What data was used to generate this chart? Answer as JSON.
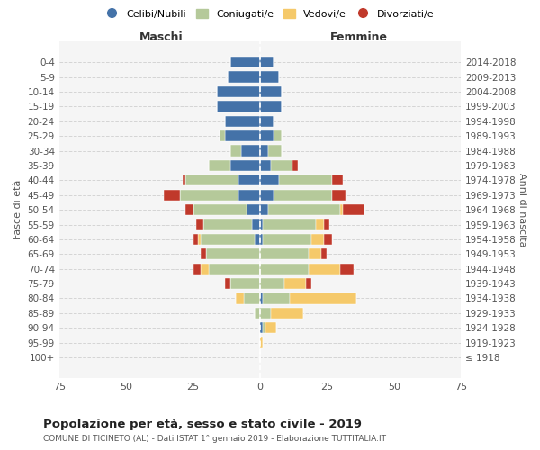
{
  "age_groups": [
    "100+",
    "95-99",
    "90-94",
    "85-89",
    "80-84",
    "75-79",
    "70-74",
    "65-69",
    "60-64",
    "55-59",
    "50-54",
    "45-49",
    "40-44",
    "35-39",
    "30-34",
    "25-29",
    "20-24",
    "15-19",
    "10-14",
    "5-9",
    "0-4"
  ],
  "birth_years": [
    "≤ 1918",
    "1919-1923",
    "1924-1928",
    "1929-1933",
    "1934-1938",
    "1939-1943",
    "1944-1948",
    "1949-1953",
    "1954-1958",
    "1959-1963",
    "1964-1968",
    "1969-1973",
    "1974-1978",
    "1979-1983",
    "1984-1988",
    "1989-1993",
    "1994-1998",
    "1999-2003",
    "2004-2008",
    "2009-2013",
    "2014-2018"
  ],
  "colors": {
    "single": "#4472a8",
    "married": "#b5c99a",
    "widowed": "#f5c96a",
    "divorced": "#c0392b"
  },
  "male": {
    "single": [
      0,
      0,
      0,
      0,
      0,
      0,
      0,
      0,
      2,
      3,
      5,
      8,
      8,
      11,
      7,
      13,
      13,
      16,
      16,
      12,
      11
    ],
    "married": [
      0,
      0,
      0,
      2,
      6,
      11,
      19,
      20,
      20,
      18,
      20,
      22,
      20,
      8,
      4,
      2,
      0,
      0,
      0,
      0,
      0
    ],
    "widowed": [
      0,
      0,
      0,
      0,
      3,
      0,
      3,
      0,
      1,
      0,
      0,
      0,
      0,
      0,
      0,
      0,
      0,
      0,
      0,
      0,
      0
    ],
    "divorced": [
      0,
      0,
      0,
      0,
      0,
      2,
      3,
      2,
      2,
      3,
      3,
      6,
      1,
      0,
      0,
      0,
      0,
      0,
      0,
      0,
      0
    ]
  },
  "female": {
    "single": [
      0,
      0,
      1,
      0,
      1,
      0,
      0,
      0,
      1,
      1,
      3,
      5,
      7,
      4,
      3,
      5,
      5,
      8,
      8,
      7,
      5
    ],
    "married": [
      0,
      0,
      1,
      4,
      10,
      9,
      18,
      18,
      18,
      20,
      27,
      22,
      20,
      8,
      5,
      3,
      0,
      0,
      0,
      0,
      0
    ],
    "widowed": [
      0,
      1,
      4,
      12,
      25,
      8,
      12,
      5,
      5,
      3,
      1,
      0,
      0,
      0,
      0,
      0,
      0,
      0,
      0,
      0,
      0
    ],
    "divorced": [
      0,
      0,
      0,
      0,
      0,
      2,
      5,
      2,
      3,
      2,
      8,
      5,
      4,
      2,
      0,
      0,
      0,
      0,
      0,
      0,
      0
    ]
  },
  "xlim": 75,
  "title": "Popolazione per età, sesso e stato civile - 2019",
  "subtitle": "COMUNE DI TICINETO (AL) - Dati ISTAT 1° gennaio 2019 - Elaborazione TUTTITALIA.IT",
  "ylabel_left": "Fasce di età",
  "ylabel_right": "Anni di nascita",
  "xlabel_left": "Maschi",
  "xlabel_right": "Femmine",
  "bg_color": "#f5f5f5",
  "grid_color": "#cccccc"
}
